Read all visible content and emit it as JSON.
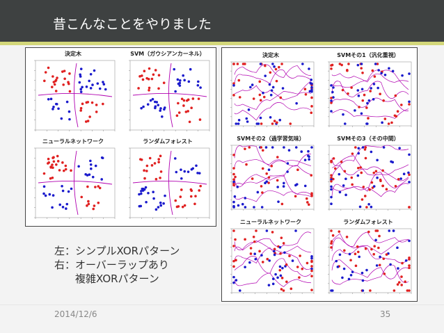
{
  "slide": {
    "title": "昔こんなことをやりました",
    "date": "2014/12/6",
    "page_number": "35",
    "caption_lines": [
      "左：シンプルXORパターン",
      "右：オーバーラップあり",
      "　　複雑XORパターン"
    ]
  },
  "left_panel": {
    "plots": [
      {
        "title": "決定木"
      },
      {
        "title": "SVM（ガウシアンカーネル）"
      },
      {
        "title": "ニューラルネットワーク"
      },
      {
        "title": "ランダムフォレスト"
      }
    ]
  },
  "right_panel": {
    "plots": [
      {
        "title": "決定木"
      },
      {
        "title": "SVMその1（汎化重視）"
      },
      {
        "title": "SVMその2（過学習気味）"
      },
      {
        "title": "SVMその3（その中間）"
      },
      {
        "title": "ニューラルネットワーク"
      },
      {
        "title": "ランダムフォレスト"
      }
    ]
  },
  "colors": {
    "class_a": "#e02020",
    "class_b": "#1a1acc",
    "boundary": "#b000b0",
    "title_bar": "#3e4141",
    "accent": "#d3d77a"
  }
}
